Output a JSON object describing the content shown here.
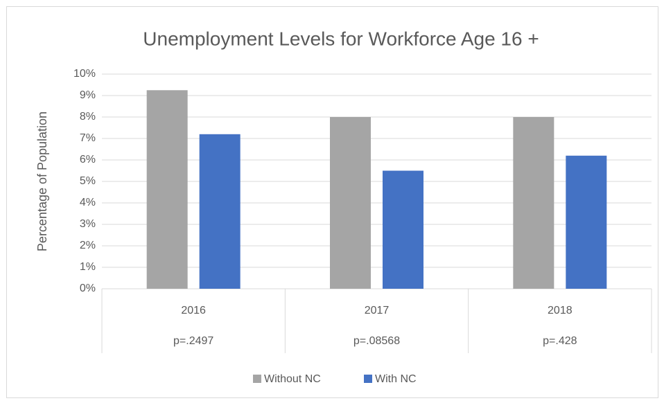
{
  "chart_data": {
    "type": "bar",
    "title": "Unemployment Levels for Workforce Age 16 +",
    "y_label": "Percentage of Population",
    "categories": [
      "2016",
      "2017",
      "2018"
    ],
    "subcategories": [
      "p=.2497",
      "p=.08568",
      "p=.428"
    ],
    "series": [
      {
        "name": "Without NC",
        "color": "#a5a5a5",
        "values": [
          9.25,
          8.0,
          8.0
        ]
      },
      {
        "name": "With NC",
        "color": "#4472c4",
        "values": [
          7.2,
          5.5,
          6.2
        ]
      }
    ],
    "ylim": [
      0,
      10
    ],
    "yticks": [
      {
        "value": 0,
        "label": "0%"
      },
      {
        "value": 1,
        "label": "1%"
      },
      {
        "value": 2,
        "label": "2%"
      },
      {
        "value": 3,
        "label": "3%"
      },
      {
        "value": 4,
        "label": "4%"
      },
      {
        "value": 5,
        "label": "5%"
      },
      {
        "value": 6,
        "label": "6%"
      },
      {
        "value": 7,
        "label": "7%"
      },
      {
        "value": 8,
        "label": "8%"
      },
      {
        "value": 9,
        "label": "9%"
      },
      {
        "value": 10,
        "label": "10%"
      }
    ],
    "grid": true,
    "legend": "bottom"
  }
}
